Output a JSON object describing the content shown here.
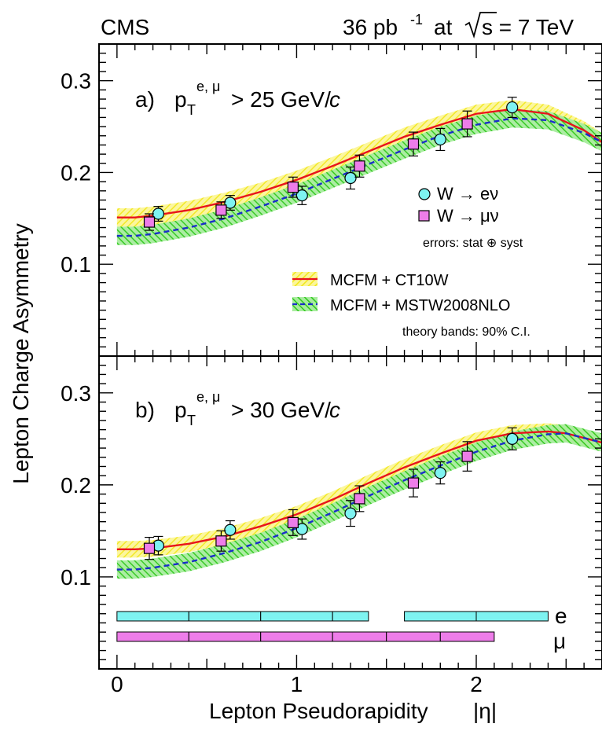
{
  "header": {
    "experiment": "CMS",
    "lumi_value": "36 pb",
    "lumi_exp": "-1",
    "lumi_at": "at",
    "sqrt_s": "s = 7 TeV"
  },
  "colors": {
    "ct10w_band": "#f5ef2a",
    "ct10w_line": "#e8141c",
    "mstw_band": "#31cf1f",
    "mstw_line": "#1a2ec9",
    "electron": "#7ef3f1",
    "muon": "#ee7de9"
  },
  "chart_data": [
    {
      "type": "scatter",
      "panel_label": "a)",
      "cut_prefix": "p",
      "cut_sub": "T",
      "cut_sup": "e, μ",
      "cut_text": "> 25 GeV/",
      "cut_unit": "c",
      "xlabel": "Lepton Pseudorapidity",
      "xlabel_symbol": "|η|",
      "ylabel": "Lepton Charge Asymmetry",
      "xlim": [
        -0.1,
        2.7
      ],
      "ylim": [
        0.0,
        0.34
      ],
      "x_ticks": [
        0,
        1,
        2
      ],
      "y_ticks": [
        0.1,
        0.2,
        0.3
      ],
      "series": [
        {
          "name": "W → eν",
          "x": [
            0.23,
            0.63,
            1.03,
            1.3,
            1.8,
            2.2
          ],
          "y": [
            0.155,
            0.167,
            0.175,
            0.194,
            0.236,
            0.271
          ],
          "err": [
            0.008,
            0.008,
            0.01,
            0.012,
            0.012,
            0.011
          ]
        },
        {
          "name": "W → μν",
          "x": [
            0.18,
            0.58,
            0.98,
            1.35,
            1.65,
            1.95
          ],
          "y": [
            0.146,
            0.159,
            0.184,
            0.207,
            0.231,
            0.253
          ],
          "err": [
            0.009,
            0.009,
            0.011,
            0.012,
            0.013,
            0.014
          ]
        }
      ],
      "theory": [
        {
          "name": "MCFM + CT10W",
          "x": [
            0,
            0.1,
            0.2,
            0.4,
            0.6,
            0.8,
            1.0,
            1.2,
            1.4,
            1.6,
            1.8,
            2.0,
            2.2,
            2.4,
            2.6,
            2.7
          ],
          "y": [
            0.151,
            0.151,
            0.153,
            0.159,
            0.168,
            0.179,
            0.192,
            0.207,
            0.223,
            0.239,
            0.252,
            0.264,
            0.269,
            0.264,
            0.246,
            0.233
          ],
          "band": 0.01
        },
        {
          "name": "MCFM + MSTW2008NLO",
          "x": [
            0,
            0.1,
            0.2,
            0.4,
            0.6,
            0.8,
            1.0,
            1.2,
            1.4,
            1.6,
            1.8,
            2.0,
            2.2,
            2.4,
            2.6,
            2.7
          ],
          "y": [
            0.131,
            0.131,
            0.133,
            0.14,
            0.15,
            0.163,
            0.177,
            0.193,
            0.209,
            0.225,
            0.24,
            0.252,
            0.259,
            0.257,
            0.243,
            0.233
          ],
          "band": 0.01
        }
      ],
      "legend": {
        "e_label": "W → eν",
        "mu_label": "W → μν",
        "errors_note": "errors: stat ⊕ syst",
        "theory_1": "MCFM + CT10W",
        "theory_2": "MCFM + MSTW2008NLO",
        "bands_note": "theory bands: 90% C.I."
      }
    },
    {
      "type": "scatter",
      "panel_label": "b)",
      "cut_prefix": "p",
      "cut_sub": "T",
      "cut_sup": "e, μ",
      "cut_text": "> 30 GeV/",
      "cut_unit": "c",
      "xlim": [
        -0.1,
        2.7
      ],
      "ylim": [
        0.0,
        0.34
      ],
      "x_ticks": [
        0,
        1,
        2
      ],
      "y_ticks": [
        0.1,
        0.2,
        0.3
      ],
      "series": [
        {
          "name": "W → eν",
          "x": [
            0.23,
            0.63,
            1.03,
            1.3,
            1.8,
            2.2
          ],
          "y": [
            0.134,
            0.151,
            0.152,
            0.169,
            0.213,
            0.25
          ],
          "err": [
            0.01,
            0.01,
            0.011,
            0.014,
            0.012,
            0.012
          ]
        },
        {
          "name": "W → μν",
          "x": [
            0.18,
            0.58,
            0.98,
            1.35,
            1.65,
            1.95
          ],
          "y": [
            0.131,
            0.139,
            0.159,
            0.185,
            0.202,
            0.231
          ],
          "err": [
            0.012,
            0.011,
            0.014,
            0.014,
            0.015,
            0.016
          ]
        }
      ],
      "theory": [
        {
          "name": "MCFM + CT10W",
          "x": [
            0,
            0.1,
            0.2,
            0.4,
            0.6,
            0.8,
            1.0,
            1.2,
            1.4,
            1.6,
            1.8,
            2.0,
            2.2,
            2.4,
            2.5,
            2.6,
            2.7
          ],
          "y": [
            0.13,
            0.13,
            0.131,
            0.136,
            0.144,
            0.155,
            0.168,
            0.184,
            0.202,
            0.219,
            0.234,
            0.248,
            0.256,
            0.258,
            0.256,
            0.251,
            0.246
          ],
          "band": 0.009
        },
        {
          "name": "MCFM + MSTW2008NLO",
          "x": [
            0,
            0.1,
            0.2,
            0.4,
            0.6,
            0.8,
            1.0,
            1.2,
            1.4,
            1.6,
            1.8,
            2.0,
            2.2,
            2.4,
            2.5,
            2.6,
            2.7
          ],
          "y": [
            0.108,
            0.108,
            0.11,
            0.116,
            0.126,
            0.138,
            0.153,
            0.17,
            0.188,
            0.205,
            0.221,
            0.236,
            0.248,
            0.255,
            0.256,
            0.251,
            0.246
          ],
          "band": 0.01
        }
      ],
      "bins": {
        "e_label": "e",
        "mu_label": "μ",
        "e_edges": [
          [
            0,
            0.4
          ],
          [
            0.4,
            0.8
          ],
          [
            0.8,
            1.2
          ],
          [
            1.2,
            1.4
          ],
          [
            1.6,
            2.0
          ],
          [
            2.0,
            2.4
          ]
        ],
        "mu_edges": [
          [
            0,
            0.4
          ],
          [
            0.4,
            0.8
          ],
          [
            0.8,
            1.2
          ],
          [
            1.2,
            1.5
          ],
          [
            1.5,
            1.8
          ],
          [
            1.8,
            2.1
          ]
        ]
      }
    }
  ]
}
